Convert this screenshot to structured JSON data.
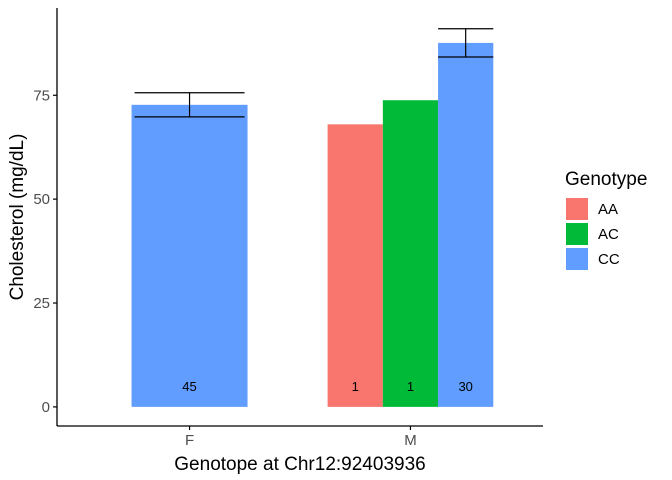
{
  "chart_data": {
    "type": "bar",
    "xlabel": "Genotope at  Chr12:92403936",
    "ylabel": "Cholesterol (mg/dL)",
    "categories": [
      "F",
      "M"
    ],
    "yticks": [
      0,
      25,
      50,
      75
    ],
    "ylim": [
      -4.6,
      96
    ],
    "grid": false,
    "legend": {
      "title": "Genotype",
      "position": "right",
      "entries": [
        {
          "label": "AA",
          "color": "#F8766D"
        },
        {
          "label": "AC",
          "color": "#00BA38"
        },
        {
          "label": "CC",
          "color": "#619CFF"
        }
      ]
    },
    "bars": [
      {
        "category": "F",
        "genotype": "CC",
        "value": 72.7,
        "error_low": 69.8,
        "error_high": 75.6,
        "count": "45"
      },
      {
        "category": "M",
        "genotype": "AA",
        "value": 68.0,
        "count": "1"
      },
      {
        "category": "M",
        "genotype": "AC",
        "value": 73.8,
        "count": "1"
      },
      {
        "category": "M",
        "genotype": "CC",
        "value": 87.6,
        "error_low": 84.2,
        "error_high": 91.0,
        "count": "30"
      }
    ]
  }
}
